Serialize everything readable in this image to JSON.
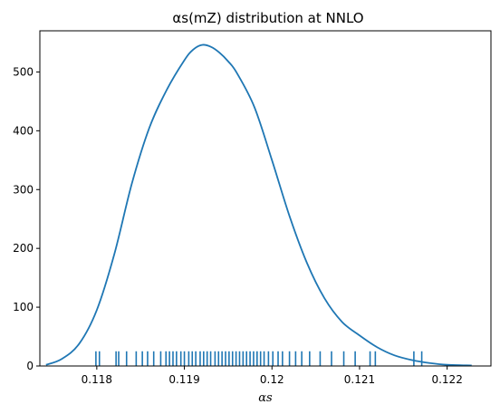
{
  "chart_data": {
    "type": "line",
    "title": "αs(mZ) distribution at NNLO",
    "xlabel": "αs",
    "ylabel": "",
    "xlim": [
      0.11735,
      0.1225
    ],
    "ylim": [
      0,
      570
    ],
    "grid": false,
    "legend": "none",
    "x_ticks": [
      0.118,
      0.119,
      0.12,
      0.121,
      0.122
    ],
    "x_tick_labels": [
      "0.118",
      "0.119",
      "0.12",
      "0.121",
      "0.122"
    ],
    "y_ticks": [
      0,
      100,
      200,
      300,
      400,
      500
    ],
    "y_tick_labels": [
      "0",
      "100",
      "200",
      "300",
      "400",
      "500"
    ],
    "line_color": "#1f77b4",
    "series": [
      {
        "kind": "kde",
        "x": [
          0.11742,
          0.1176,
          0.1178,
          0.118,
          0.1182,
          0.1184,
          0.1186,
          0.1188,
          0.119,
          0.1191,
          0.1192,
          0.1193,
          0.1194,
          0.1195,
          0.1196,
          0.1198,
          0.12,
          0.1202,
          0.1204,
          0.1206,
          0.1208,
          0.121,
          0.1212,
          0.1214,
          0.1216,
          0.1218,
          0.122,
          0.12228
        ],
        "y": [
          2,
          12,
          38,
          95,
          190,
          310,
          405,
          470,
          520,
          538,
          546,
          543,
          533,
          518,
          498,
          440,
          350,
          255,
          175,
          115,
          75,
          52,
          32,
          18,
          10,
          5,
          2,
          1
        ]
      },
      {
        "kind": "rug",
        "height": 25,
        "x": [
          0.11799,
          0.11803,
          0.11822,
          0.11825,
          0.11834,
          0.11845,
          0.11852,
          0.11858,
          0.11865,
          0.11873,
          0.11879,
          0.11883,
          0.11887,
          0.11891,
          0.11896,
          0.119,
          0.11905,
          0.11909,
          0.11913,
          0.11918,
          0.11922,
          0.11926,
          0.1193,
          0.11935,
          0.11939,
          0.11943,
          0.11947,
          0.11951,
          0.11955,
          0.11959,
          0.11963,
          0.11967,
          0.11971,
          0.11975,
          0.11979,
          0.11983,
          0.11987,
          0.11991,
          0.11996,
          0.12001,
          0.12007,
          0.12012,
          0.1202,
          0.12027,
          0.12034,
          0.12043,
          0.12055,
          0.12068,
          0.12082,
          0.12095,
          0.12112,
          0.12118,
          0.12162,
          0.12171
        ]
      }
    ]
  }
}
